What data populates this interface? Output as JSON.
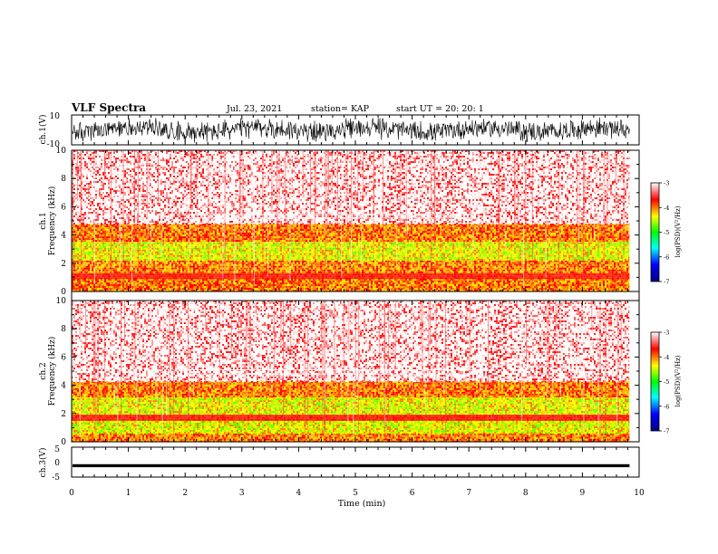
{
  "header": {
    "title": "VLF Spectra",
    "date": "Jul. 23, 2021",
    "station": "station= KAP",
    "start": "start UT =  20: 20: 1"
  },
  "colors": {
    "background": "#ffffff",
    "frame": "#000000",
    "colormap": [
      "#00007f",
      "#0000ff",
      "#00ffff",
      "#00ff00",
      "#ffff00",
      "#ff0000",
      "#ffffff"
    ]
  },
  "chart_data": [
    {
      "type": "line",
      "name": "ch1-waveform",
      "ylabel": "ch.1(V)",
      "ylim": [
        -10,
        10
      ],
      "yticks": [
        "10",
        "-10"
      ],
      "xlim": [
        0,
        10
      ],
      "amplitude_range": [
        -8,
        8
      ],
      "grid": false
    },
    {
      "type": "heatmap",
      "name": "ch1-spectrogram",
      "ylabel": "ch.1\nFrequency (kHz)",
      "ylim": [
        0,
        10
      ],
      "yticks": [
        "0",
        "2",
        "4",
        "6",
        "8",
        "10"
      ],
      "xlim": [
        0,
        10
      ],
      "data_end_min": 9.83,
      "colorbar": {
        "label": "log(PSD)(V²/Hz)",
        "range": [
          -7,
          -3
        ],
        "ticks": [
          "-3",
          "-4",
          "-5",
          "-6",
          "-7"
        ]
      },
      "bands": [
        {
          "f": [
            0,
            0.9
          ],
          "level": "red-yellow"
        },
        {
          "f": [
            0.9,
            1.4
          ],
          "level": "red"
        },
        {
          "f": [
            1.4,
            2.2
          ],
          "level": "yellow-red"
        },
        {
          "f": [
            2.2,
            3.6
          ],
          "level": "yellow-green"
        },
        {
          "f": [
            3.6,
            4.8
          ],
          "level": "red-yellow"
        },
        {
          "f": [
            4.8,
            10
          ],
          "level": "red-white"
        }
      ],
      "tone_lines_khz": [
        5.2,
        5.45
      ],
      "tone_interval_min": [
        2,
        7.2
      ]
    },
    {
      "type": "heatmap",
      "name": "ch2-spectrogram",
      "ylabel": "ch.2\nFrequency (kHz)",
      "ylim": [
        0,
        10
      ],
      "yticks": [
        "0",
        "2",
        "4",
        "6",
        "8",
        "10"
      ],
      "xlim": [
        0,
        10
      ],
      "data_end_min": 9.83,
      "colorbar": {
        "label": "log(PSD)(V²/Hz)",
        "range": [
          -7,
          -3
        ],
        "ticks": [
          "-3",
          "-4",
          "-5",
          "-6",
          "-7"
        ]
      },
      "bands": [
        {
          "f": [
            0,
            0.6
          ],
          "level": "red-yellow"
        },
        {
          "f": [
            0.6,
            1.6
          ],
          "level": "yellow-green"
        },
        {
          "f": [
            1.6,
            2.0
          ],
          "level": "red"
        },
        {
          "f": [
            2.0,
            3.2
          ],
          "level": "yellow-green"
        },
        {
          "f": [
            3.2,
            4.3
          ],
          "level": "red-yellow"
        },
        {
          "f": [
            4.3,
            10
          ],
          "level": "red-white"
        }
      ],
      "tone_lines_khz": [
        4.8,
        5.1
      ],
      "tone_interval_min": [
        2,
        7.2
      ]
    },
    {
      "type": "line",
      "name": "ch3-waveform",
      "ylabel": "ch.3(V)",
      "ylim": [
        -5,
        5
      ],
      "yticks": [
        "5",
        "0",
        "-5"
      ],
      "xlim": [
        0,
        10
      ],
      "level": -1.2,
      "amplitude": 0.5,
      "grid": false
    }
  ],
  "xaxis": {
    "label": "Time (min)",
    "ticks": [
      "0",
      "1",
      "2",
      "3",
      "4",
      "5",
      "6",
      "7",
      "8",
      "9",
      "10"
    ]
  }
}
